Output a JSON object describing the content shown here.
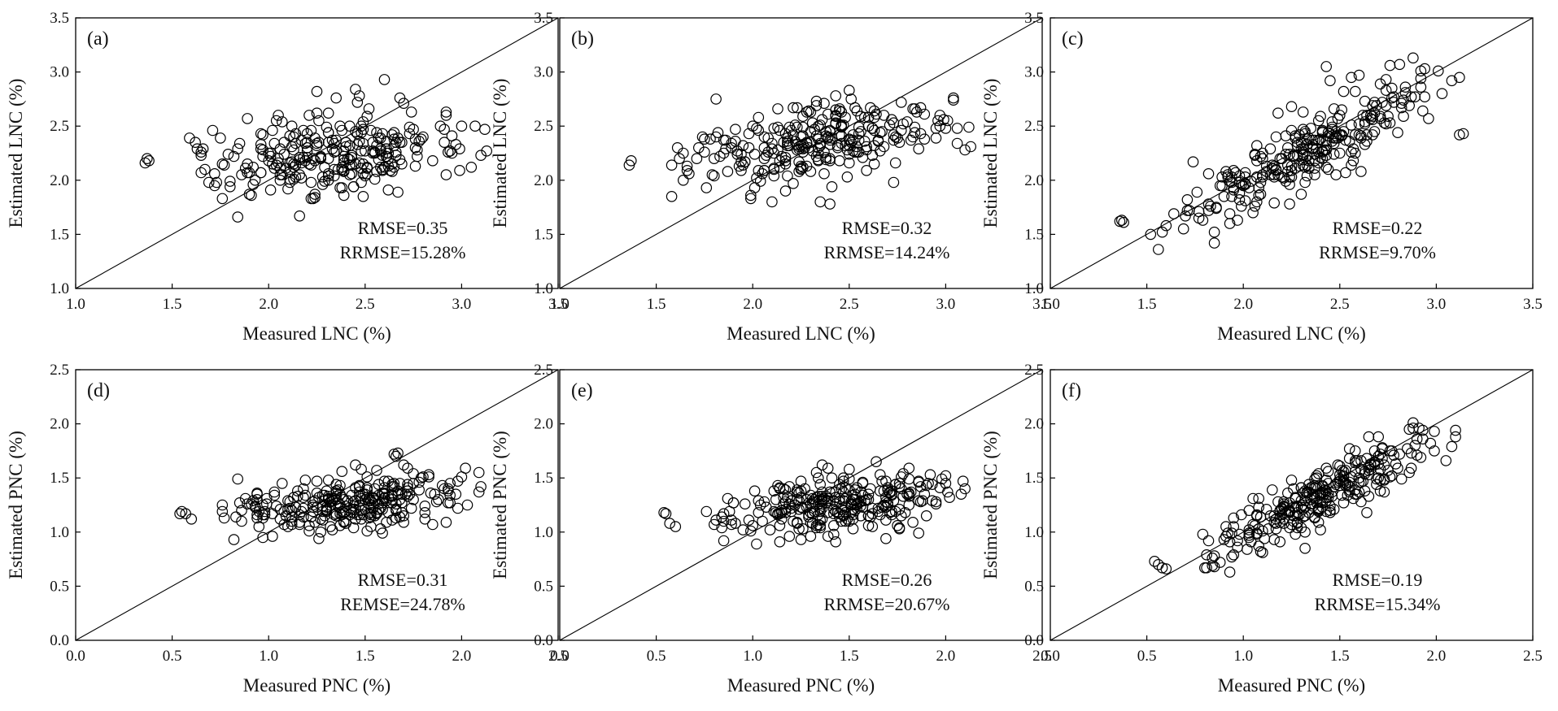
{
  "chart_data": [
    {
      "panel": "(a)",
      "type": "scatter",
      "xlabel": "Measured LNC (%)",
      "ylabel": "Estimated LNC (%)",
      "xlim": [
        1.0,
        3.5
      ],
      "ylim": [
        1.0,
        3.5
      ],
      "xticks": [
        "1.0",
        "1.5",
        "2.0",
        "2.5",
        "3.0",
        "3.5"
      ],
      "yticks": [
        "1.0",
        "1.5",
        "2.0",
        "2.5",
        "3.0",
        "3.5"
      ],
      "stat1": "RMSE=0.35",
      "stat2": "RRMSE=15.28%",
      "pattern": {
        "seed": 11,
        "n": 270,
        "xmin": 1.5,
        "xmax": 3.12,
        "mode": "flat",
        "a": 1.75,
        "b": 0.2,
        "noise": 0.18
      },
      "points": [
        [
          1.36,
          2.16
        ],
        [
          1.37,
          2.2
        ],
        [
          1.38,
          2.18
        ],
        [
          2.45,
          2.84
        ],
        [
          2.47,
          2.78
        ],
        [
          2.46,
          2.72
        ],
        [
          2.6,
          2.93
        ],
        [
          2.68,
          2.76
        ],
        [
          2.7,
          2.71
        ],
        [
          2.92,
          2.6
        ],
        [
          3.12,
          2.47
        ],
        [
          3.1,
          2.23
        ],
        [
          3.13,
          2.27
        ],
        [
          2.25,
          2.62
        ],
        [
          2.05,
          2.6
        ]
      ]
    },
    {
      "panel": "(b)",
      "type": "scatter",
      "xlabel": "Measured LNC (%)",
      "ylabel": "Estimated LNC (%)",
      "xlim": [
        1.0,
        3.5
      ],
      "ylim": [
        1.0,
        3.5
      ],
      "xticks": [
        "1.0",
        "1.5",
        "2.0",
        "2.5",
        "3.0",
        "3.5"
      ],
      "yticks": [
        "1.0",
        "1.5",
        "2.0",
        "2.5",
        "3.0",
        "3.5"
      ],
      "stat1": "RMSE=0.32",
      "stat2": "RRMSE=14.24%",
      "pattern": {
        "seed": 23,
        "n": 270,
        "xmin": 1.5,
        "xmax": 3.12,
        "mode": "flat",
        "a": 1.65,
        "b": 0.3,
        "noise": 0.17
      },
      "points": [
        [
          1.36,
          2.14
        ],
        [
          1.37,
          2.18
        ],
        [
          2.45,
          2.66
        ],
        [
          2.43,
          2.6
        ],
        [
          2.63,
          2.64
        ],
        [
          3.12,
          2.49
        ],
        [
          3.1,
          2.28
        ],
        [
          3.13,
          2.31
        ],
        [
          2.35,
          1.8
        ],
        [
          2.4,
          1.78
        ],
        [
          2.73,
          1.98
        ],
        [
          2.1,
          1.8
        ]
      ]
    },
    {
      "panel": "(c)",
      "type": "scatter",
      "xlabel": "Measured LNC (%)",
      "ylabel": "Estimated LNC (%)",
      "xlim": [
        1.0,
        3.5
      ],
      "ylim": [
        1.0,
        3.5
      ],
      "xticks": [
        "1.0",
        "1.5",
        "2.0",
        "2.5",
        "3.0",
        "3.5"
      ],
      "yticks": [
        "1.0",
        "1.5",
        "2.0",
        "2.5",
        "3.0",
        "3.5"
      ],
      "stat1": "RMSE=0.22",
      "stat2": "RRMSE=9.70%",
      "pattern": {
        "seed": 37,
        "n": 270,
        "xmin": 1.5,
        "xmax": 3.1,
        "mode": "diag",
        "a": 0.1,
        "b": 0.93,
        "noise": 0.16
      },
      "points": [
        [
          1.36,
          1.62
        ],
        [
          1.37,
          1.63
        ],
        [
          1.38,
          1.61
        ],
        [
          2.43,
          3.05
        ],
        [
          2.6,
          2.97
        ],
        [
          2.45,
          2.92
        ],
        [
          3.12,
          2.95
        ],
        [
          3.12,
          2.42
        ],
        [
          3.14,
          2.43
        ],
        [
          1.52,
          1.5
        ],
        [
          1.58,
          1.52
        ]
      ]
    },
    {
      "panel": "(d)",
      "type": "scatter",
      "xlabel": "Measured PNC (%)",
      "ylabel": "Estimated PNC (%)",
      "xlim": [
        0.0,
        2.5
      ],
      "ylim": [
        0.0,
        2.5
      ],
      "xticks": [
        "0.0",
        "0.5",
        "1.0",
        "1.5",
        "2.0",
        "2.5"
      ],
      "yticks": [
        "0.0",
        "0.5",
        "1.0",
        "1.5",
        "2.0",
        "2.5"
      ],
      "stat1": "RMSE=0.31",
      "stat2": "REMSE=24.78%",
      "pattern": {
        "seed": 51,
        "n": 280,
        "xmin": 0.7,
        "xmax": 2.08,
        "mode": "flat",
        "a": 1.05,
        "b": 0.14,
        "noise": 0.12
      },
      "points": [
        [
          0.54,
          1.17
        ],
        [
          0.55,
          1.19
        ],
        [
          0.57,
          1.17
        ],
        [
          0.6,
          1.12
        ],
        [
          1.65,
          1.72
        ],
        [
          1.66,
          1.7
        ],
        [
          1.67,
          1.73
        ],
        [
          1.7,
          1.62
        ],
        [
          1.45,
          1.62
        ],
        [
          1.48,
          1.58
        ],
        [
          2.09,
          1.55
        ],
        [
          2.1,
          1.42
        ],
        [
          2.09,
          1.37
        ]
      ]
    },
    {
      "panel": "(e)",
      "type": "scatter",
      "xlabel": "Measured PNC (%)",
      "ylabel": "Estimated PNC (%)",
      "xlim": [
        0.0,
        2.5
      ],
      "ylim": [
        0.0,
        2.5
      ],
      "xticks": [
        "0.0",
        "0.5",
        "1.0",
        "1.5",
        "2.0",
        "2.5"
      ],
      "yticks": [
        "0.0",
        "0.5",
        "1.0",
        "1.5",
        "2.0",
        "2.5"
      ],
      "stat1": "RMSE=0.26",
      "stat2": "RRMSE=20.67%",
      "pattern": {
        "seed": 67,
        "n": 280,
        "xmin": 0.7,
        "xmax": 2.08,
        "mode": "flat",
        "a": 1.02,
        "b": 0.17,
        "noise": 0.13
      },
      "points": [
        [
          0.54,
          1.18
        ],
        [
          0.55,
          1.17
        ],
        [
          0.57,
          1.08
        ],
        [
          0.6,
          1.05
        ],
        [
          2.09,
          1.47
        ],
        [
          2.1,
          1.4
        ],
        [
          2.08,
          1.35
        ],
        [
          0.85,
          0.92
        ],
        [
          1.25,
          0.93
        ],
        [
          1.3,
          0.96
        ]
      ]
    },
    {
      "panel": "(f)",
      "type": "scatter",
      "xlabel": "Measured PNC (%)",
      "ylabel": "Estimated PNC (%)",
      "xlim": [
        0.0,
        2.5
      ],
      "ylim": [
        0.0,
        2.5
      ],
      "xticks": [
        "0.0",
        "0.5",
        "1.0",
        "1.5",
        "2.0",
        "2.5"
      ],
      "yticks": [
        "0.0",
        "0.5",
        "1.0",
        "1.5",
        "2.0",
        "2.5"
      ],
      "stat1": "RMSE=0.19",
      "stat2": "RRMSE=15.34%",
      "pattern": {
        "seed": 83,
        "n": 280,
        "xmin": 0.7,
        "xmax": 2.05,
        "mode": "diag",
        "a": 0.08,
        "b": 0.9,
        "noise": 0.13
      },
      "points": [
        [
          0.54,
          0.73
        ],
        [
          0.56,
          0.7
        ],
        [
          0.58,
          0.67
        ],
        [
          0.6,
          0.66
        ],
        [
          2.1,
          1.94
        ],
        [
          2.1,
          1.88
        ],
        [
          2.08,
          1.79
        ],
        [
          2.05,
          1.66
        ],
        [
          1.65,
          1.88
        ],
        [
          1.7,
          1.88
        ],
        [
          1.32,
          0.85
        ],
        [
          1.1,
          0.81
        ]
      ]
    }
  ]
}
